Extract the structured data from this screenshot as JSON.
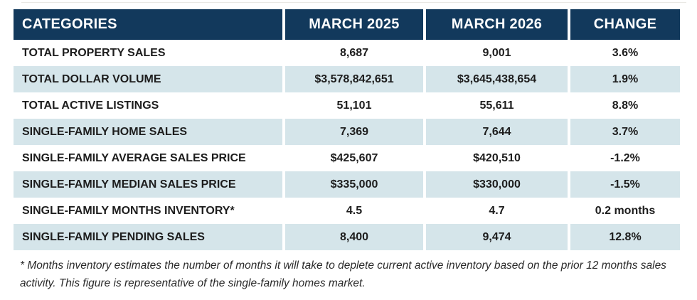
{
  "chart_data": {
    "type": "table",
    "columns": [
      "CATEGORIES",
      "MARCH 2025",
      "MARCH 2026",
      "CHANGE"
    ],
    "rows": [
      [
        "TOTAL PROPERTY SALES",
        "8,687",
        "9,001",
        "3.6%"
      ],
      [
        "TOTAL DOLLAR VOLUME",
        "$3,578,842,651",
        "$3,645,438,654",
        "1.9%"
      ],
      [
        "TOTAL ACTIVE LISTINGS",
        "51,101",
        "55,611",
        "8.8%"
      ],
      [
        "SINGLE-FAMILY HOME SALES",
        "7,369",
        "7,644",
        "3.7%"
      ],
      [
        "SINGLE-FAMILY AVERAGE SALES PRICE",
        "$425,607",
        "$420,510",
        "-1.2%"
      ],
      [
        "SINGLE-FAMILY MEDIAN SALES PRICE",
        "$335,000",
        "$330,000",
        "-1.5%"
      ],
      [
        "SINGLE-FAMILY MONTHS INVENTORY*",
        "4.5",
        "4.7",
        "0.2 months"
      ],
      [
        "SINGLE-FAMILY PENDING SALES",
        "8,400",
        "9,474",
        "12.8%"
      ]
    ],
    "layout": {
      "alternating_row_shading": true,
      "header_alignment": "first column left, others centered"
    }
  },
  "footnote": "* Months inventory estimates the number of months it will take to deplete current active inventory based on the prior 12 months sales activity. This figure is representative of the single-family homes market.",
  "colors": {
    "header_bg": "#12395c",
    "header_text": "#ffffff",
    "alt_row_bg": "#d5e5ea",
    "body_text": "#1d1d1d"
  }
}
